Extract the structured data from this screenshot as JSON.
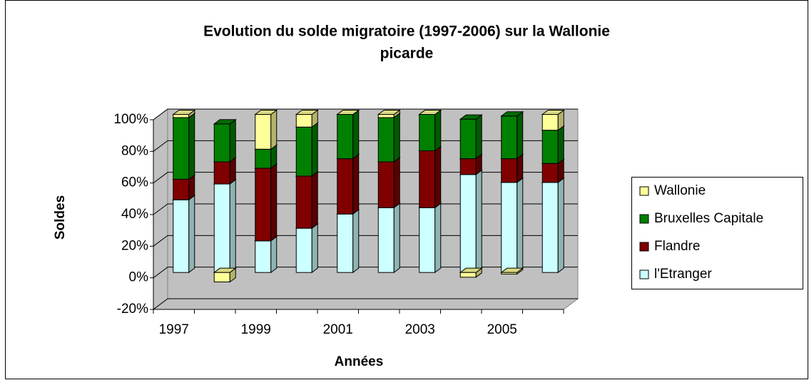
{
  "chart_data": {
    "type": "bar3d_stacked",
    "title": "Evolution du solde migratoire (1997-2006) sur la Wallonie",
    "title_line2": "picarde",
    "y_label": "Soldes",
    "x_label": "Années",
    "categories": [
      "1997",
      null,
      "1999",
      null,
      "2001",
      null,
      "2003",
      null,
      "2005",
      null
    ],
    "series": [
      {
        "name": "l'Etranger",
        "color": "#ccffff",
        "values": [
          46,
          56,
          20,
          28,
          37,
          41,
          41,
          62,
          57,
          57
        ]
      },
      {
        "name": "Flandre",
        "color": "#800000",
        "values": [
          13,
          14,
          46,
          33,
          35,
          29,
          36,
          10,
          15,
          12
        ]
      },
      {
        "name": "Bruxelles Capitale",
        "color": "#008000",
        "values": [
          39,
          24,
          12,
          31,
          28,
          28,
          23,
          25,
          27,
          21
        ]
      },
      {
        "name": "Wallonie",
        "color": "#ffff99",
        "values": [
          2,
          -6,
          22,
          8,
          0,
          2,
          0,
          -3,
          -1,
          10
        ]
      }
    ],
    "ylim": [
      -20,
      100
    ],
    "yticks": [
      {
        "value": -20,
        "label": "-20%"
      },
      {
        "value": 0,
        "label": "0%"
      },
      {
        "value": 20,
        "label": "20%"
      },
      {
        "value": 40,
        "label": "40%"
      },
      {
        "value": 60,
        "label": "60%"
      },
      {
        "value": 80,
        "label": "80%"
      },
      {
        "value": 100,
        "label": "100%"
      }
    ],
    "grid": true,
    "legend": "right"
  }
}
